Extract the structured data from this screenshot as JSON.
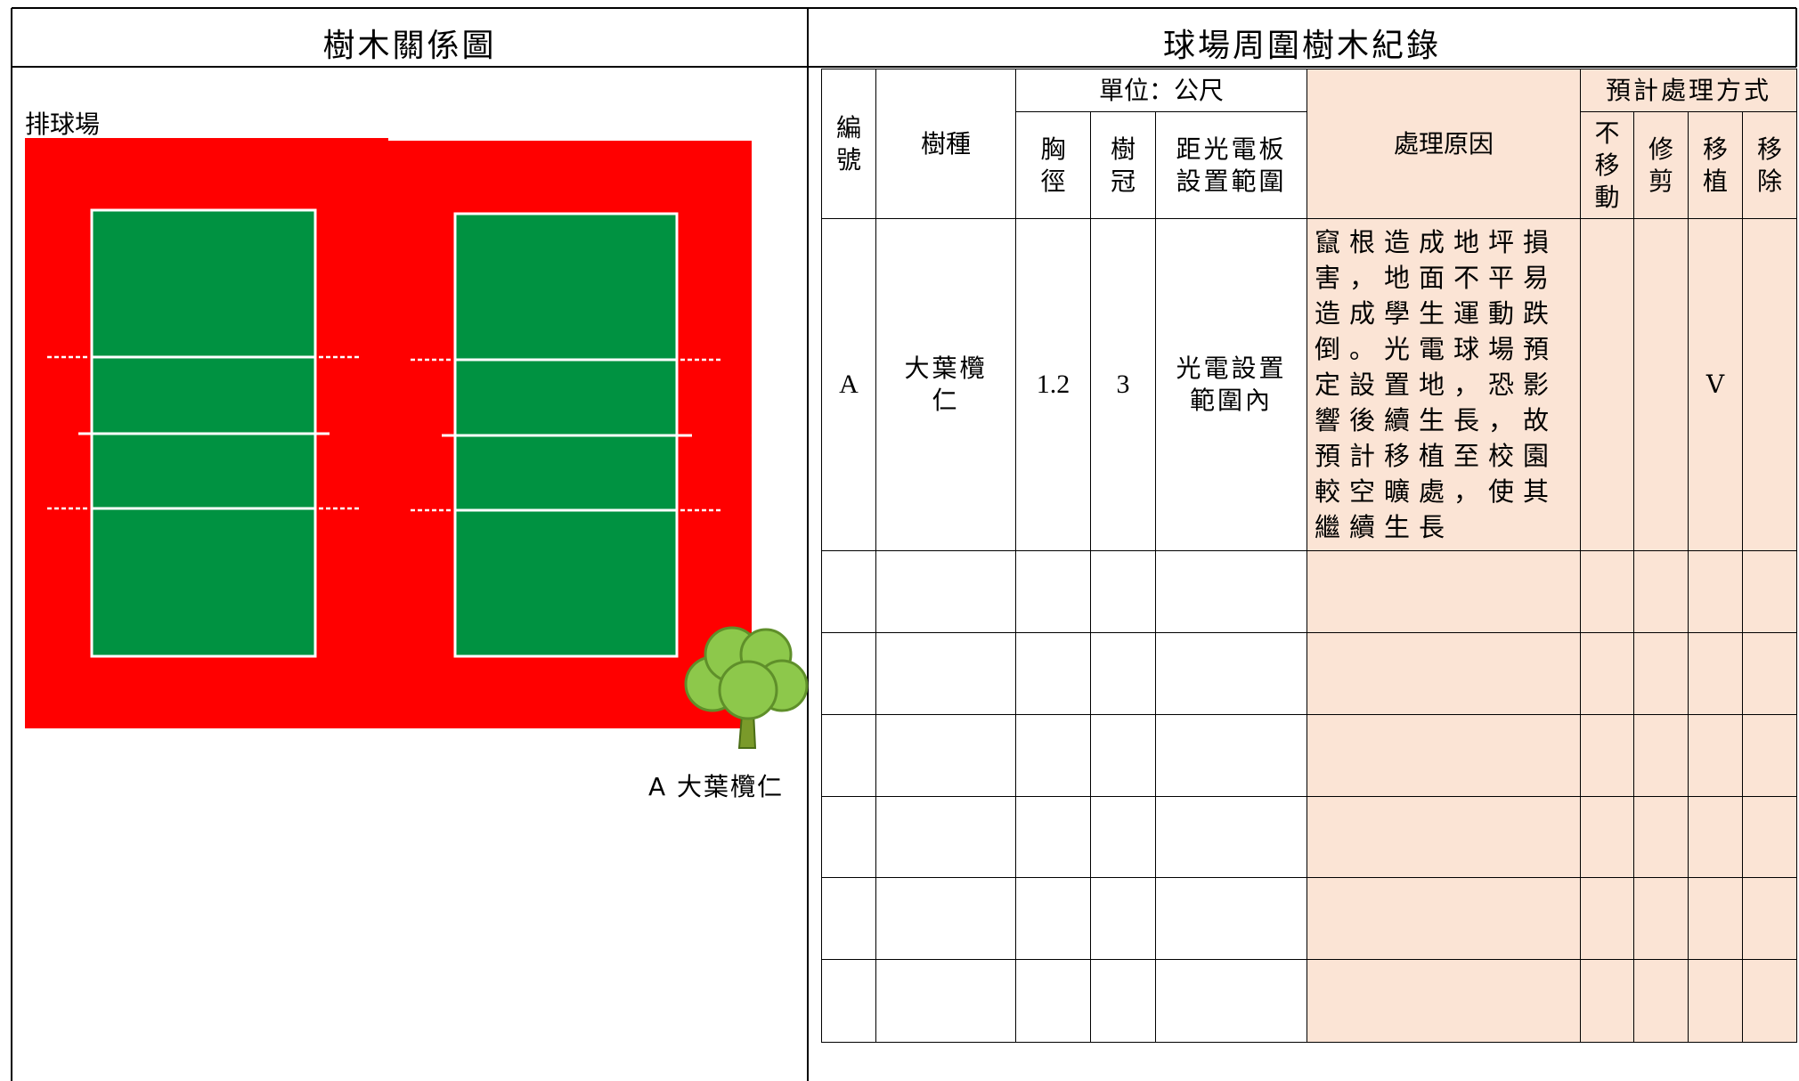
{
  "left_panel": {
    "title": "樹木關係圖",
    "court_label": "排球場",
    "tree_label": "A 大葉欖仁"
  },
  "right_panel": {
    "title": "球場周圍樹木紀錄",
    "table": {
      "headers": {
        "id": "編號",
        "species": "樹種",
        "unit": "單位：公尺",
        "dbh": "胸徑",
        "crown": "樹冠",
        "distance": "距光電板設置範圍",
        "reason": "處理原因",
        "plan": "預計處理方式",
        "keep": "不移動",
        "prune": "修剪",
        "transplant": "移植",
        "remove": "移除"
      },
      "rows": [
        {
          "id": "A",
          "species": "大葉欖仁",
          "dbh": 1.2,
          "crown": 3,
          "distance": "光電設置範圍內",
          "reason": "竄根造成地坪損害，地面不平易造成學生運動跌倒。光電球場預定設置地，恐影響後續生長，故預計移植至校園較空曠處，使其繼續生長",
          "transplant": "V"
        }
      ]
    }
  }
}
